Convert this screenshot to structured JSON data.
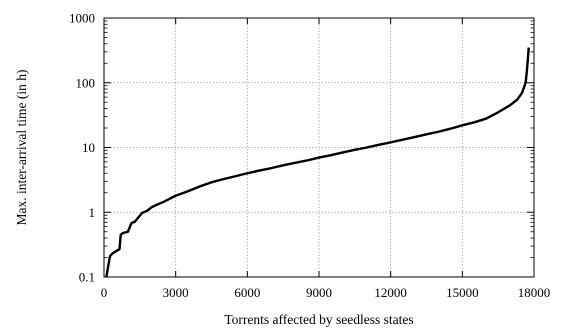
{
  "chart_data": {
    "type": "line",
    "title": "",
    "xlabel": "Torrents affected by seedless states",
    "ylabel": "Max. inter-arrival time (in h)",
    "xlim": [
      0,
      18000
    ],
    "ylim": [
      0.1,
      1000
    ],
    "yscale": "log",
    "grid": true,
    "legend": "none",
    "x_ticks": [
      "0",
      "3000",
      "6000",
      "9000",
      "12000",
      "15000",
      "18000"
    ],
    "y_ticks": [
      "0.1",
      "1",
      "10",
      "100",
      "1000"
    ],
    "series": [
      {
        "color": "#000000",
        "points": [
          [
            100,
            0.1
          ],
          [
            180,
            0.15
          ],
          [
            250,
            0.21
          ],
          [
            350,
            0.23
          ],
          [
            500,
            0.25
          ],
          [
            650,
            0.27
          ],
          [
            700,
            0.45
          ],
          [
            800,
            0.48
          ],
          [
            1000,
            0.5
          ],
          [
            1150,
            0.68
          ],
          [
            1300,
            0.72
          ],
          [
            1400,
            0.8
          ],
          [
            1600,
            0.98
          ],
          [
            1800,
            1.05
          ],
          [
            2000,
            1.2
          ],
          [
            2200,
            1.3
          ],
          [
            2500,
            1.45
          ],
          [
            3000,
            1.8
          ],
          [
            3500,
            2.1
          ],
          [
            4000,
            2.5
          ],
          [
            4500,
            2.9
          ],
          [
            5000,
            3.25
          ],
          [
            5500,
            3.6
          ],
          [
            6000,
            4.0
          ],
          [
            6500,
            4.4
          ],
          [
            7000,
            4.8
          ],
          [
            7500,
            5.3
          ],
          [
            8000,
            5.8
          ],
          [
            8500,
            6.3
          ],
          [
            9000,
            7.0
          ],
          [
            9500,
            7.6
          ],
          [
            10000,
            8.4
          ],
          [
            10500,
            9.2
          ],
          [
            11000,
            10.0
          ],
          [
            11500,
            11.0
          ],
          [
            12000,
            12.0
          ],
          [
            12500,
            13.2
          ],
          [
            13000,
            14.5
          ],
          [
            13500,
            16.0
          ],
          [
            14000,
            17.5
          ],
          [
            14500,
            19.5
          ],
          [
            15000,
            22.0
          ],
          [
            15500,
            24.5
          ],
          [
            16000,
            28.0
          ],
          [
            16500,
            35.0
          ],
          [
            17000,
            45.0
          ],
          [
            17300,
            55.0
          ],
          [
            17500,
            70.0
          ],
          [
            17650,
            100.0
          ],
          [
            17700,
            150.0
          ],
          [
            17750,
            250.0
          ],
          [
            17780,
            350.0
          ]
        ]
      }
    ]
  }
}
